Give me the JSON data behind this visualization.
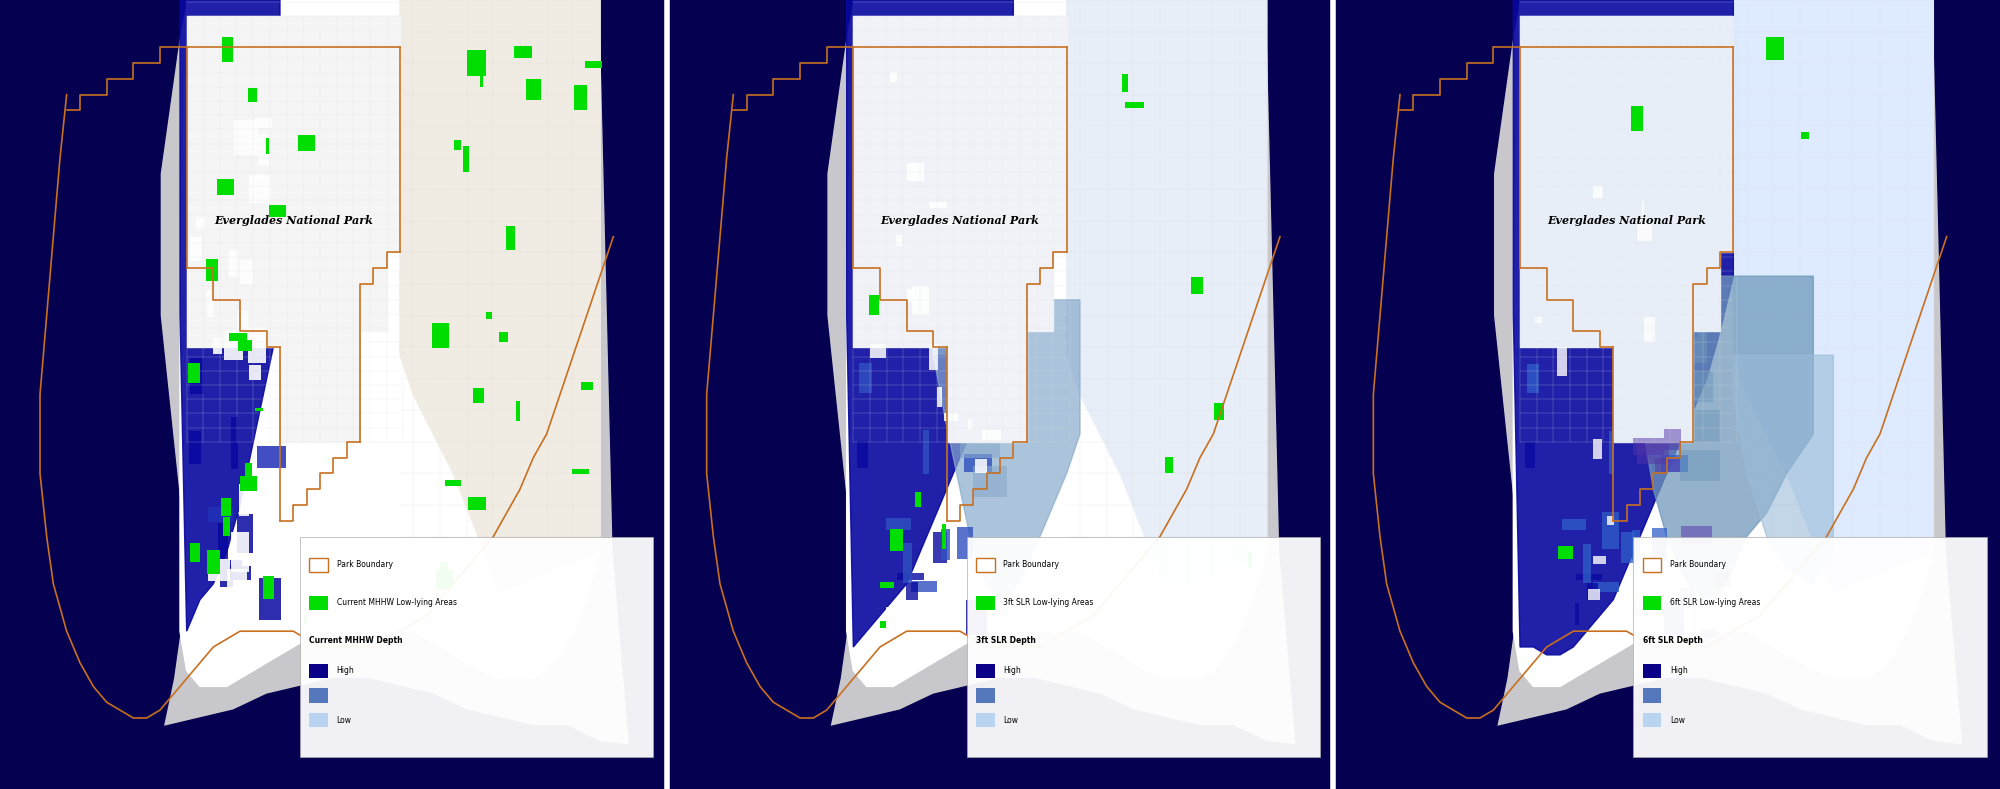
{
  "figure_width": 20.0,
  "figure_height": 7.89,
  "dpi": 100,
  "bg_color": "#c8c8cc",
  "ocean_deep": "#060050",
  "ocean_mid": "#0a0880",
  "park_boundary_color": "#c87020",
  "park_label": "Everglades National Park",
  "panels": [
    {
      "scenario": "current",
      "legend_lowlying_label": "Current MHHW Low-lying Areas",
      "legend_depth_label": "Current MHHW Depth",
      "park_interior": "#f5f5f5",
      "urban_area": "#f0ece4",
      "flood_deep": "#0808a0",
      "flood_mid": "#2030b8",
      "flood_light": "#aabbd8",
      "flood_vlight": "#c8ddf0",
      "green_count": 40
    },
    {
      "scenario": "3ft",
      "legend_lowlying_label": "3ft SLR Low-lying Areas",
      "legend_depth_label": "3ft SLR Depth",
      "park_interior": "#f0f2f8",
      "urban_area": "#e8eef8",
      "flood_deep": "#0808a0",
      "flood_mid": "#3050c0",
      "flood_light": "#88aacc",
      "flood_vlight": "#b0ccee",
      "green_count": 12
    },
    {
      "scenario": "6ft",
      "legend_lowlying_label": "6ft SLR Low-lying Areas",
      "legend_depth_label": "6ft SLR Depth",
      "park_interior": "#e8eef8",
      "urban_area": "#ddeaff",
      "flood_deep": "#0808a0",
      "flood_mid": "#3060c8",
      "flood_light": "#7099bb",
      "flood_vlight": "#9abbd8",
      "green_count": 5
    }
  ],
  "legend_high_color": "#0a0088",
  "legend_low_color": "#b8d4f0",
  "legend_mid_color": "#5577bb",
  "green_color": "#00dd00",
  "park_bnd_color": "#c87020"
}
